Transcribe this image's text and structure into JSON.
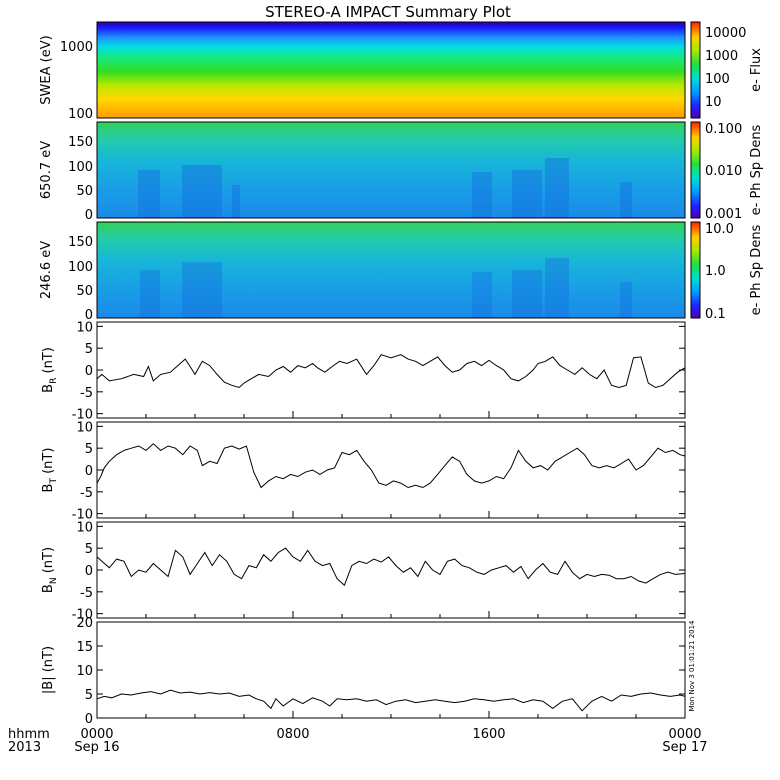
{
  "title": "STEREO-A IMPACT Summary Plot",
  "timestamp": "Mon Nov 3 01:01:21 2014",
  "x_axis": {
    "row1": [
      "0000",
      "0800",
      "1600",
      "0000"
    ],
    "row2": [
      "Sep 16",
      "Sep 17"
    ],
    "corner_row1": "hhmm",
    "corner_row2": "2013"
  },
  "chart_data": [
    {
      "type": "heatmap",
      "ylabel": "SWEA (eV)",
      "y_ticks": [
        "1000",
        "100"
      ],
      "colorbar_label": "e- Flux",
      "colorbar_ticks": [
        "10000",
        "1000",
        "100",
        "10"
      ],
      "log_scale": true,
      "ylim": [
        90,
        2000
      ]
    },
    {
      "type": "heatmap",
      "ylabel": "650.7 eV",
      "y_ticks": [
        "150",
        "100",
        "50",
        "0"
      ],
      "ylim": [
        -5,
        180
      ],
      "colorbar_label": "e- Ph Sp Dens",
      "colorbar_ticks": [
        "0.100",
        "0.010",
        "0.001"
      ]
    },
    {
      "type": "heatmap",
      "ylabel": "246.6 eV",
      "y_ticks": [
        "150",
        "100",
        "50",
        "0"
      ],
      "ylim": [
        -5,
        180
      ],
      "colorbar_label": "e- Ph Sp Dens",
      "colorbar_ticks": [
        "10.0",
        "1.0",
        "0.1"
      ]
    },
    {
      "type": "line",
      "ylabel": "B_R (nT)",
      "ylabel_main": "B",
      "ylabel_sub": "R",
      "ylabel_unit": "(nT)",
      "y_ticks": [
        "10",
        "5",
        "0",
        "-5",
        "-10"
      ],
      "ylim": [
        -11,
        11
      ],
      "x": [
        0,
        0.2,
        0.5,
        1,
        1.5,
        1.9,
        2.1,
        2.3,
        2.6,
        3,
        3.3,
        3.6,
        3.8,
        4,
        4.3,
        4.6,
        4.9,
        5.2,
        5.5,
        5.8,
        6,
        6.3,
        6.6,
        7,
        7.3,
        7.6,
        7.9,
        8.2,
        8.5,
        8.8,
        9,
        9.3,
        9.6,
        9.9,
        10.2,
        10.6,
        11,
        11.3,
        11.6,
        12,
        12.4,
        12.7,
        13,
        13.3,
        13.6,
        13.9,
        14.2,
        14.5,
        14.8,
        15.1,
        15.4,
        15.7,
        16,
        16.3,
        16.6,
        16.9,
        17.2,
        17.5,
        17.8,
        18,
        18.3,
        18.6,
        18.9,
        19.2,
        19.5,
        19.8,
        20.1,
        20.4,
        20.7,
        21,
        21.3,
        21.6,
        21.9,
        22.2,
        22.5,
        22.8,
        23.1,
        23.4,
        23.7,
        24
      ],
      "values": [
        -2,
        -1,
        -2.5,
        -2,
        -1,
        -1.5,
        0.8,
        -2.5,
        -1,
        -0.5,
        1,
        2.5,
        0.8,
        -1,
        2,
        1,
        -1,
        -2.8,
        -3.5,
        -4,
        -3,
        -2,
        -1,
        -1.5,
        0,
        0.8,
        -0.5,
        1,
        0.5,
        1.5,
        0.5,
        -0.5,
        0.8,
        2,
        1.5,
        2.5,
        -1,
        1,
        3.5,
        2.8,
        3.5,
        2.5,
        2,
        1,
        2,
        3,
        1,
        -0.5,
        0,
        1.5,
        2,
        1,
        2.2,
        1,
        0,
        -2,
        -2.5,
        -1.5,
        0,
        1.5,
        2,
        3,
        1,
        0,
        -1,
        0.5,
        -1,
        -2,
        0,
        -3.5,
        -4,
        -3.5,
        2.8,
        3,
        -3,
        -4,
        -3.5,
        -2,
        -0.5,
        0.5
      ]
    },
    {
      "type": "line",
      "ylabel": "B_T (nT)",
      "ylabel_main": "B",
      "ylabel_sub": "T",
      "ylabel_unit": "(nT)",
      "y_ticks": [
        "10",
        "5",
        "0",
        "-5",
        "-10"
      ],
      "ylim": [
        -11,
        11
      ],
      "x": [
        0,
        0.15,
        0.3,
        0.5,
        0.8,
        1.1,
        1.4,
        1.7,
        2,
        2.3,
        2.6,
        2.9,
        3.2,
        3.5,
        3.8,
        4.1,
        4.3,
        4.6,
        4.9,
        5.2,
        5.5,
        5.8,
        6.1,
        6.4,
        6.7,
        7,
        7.3,
        7.6,
        7.9,
        8.2,
        8.5,
        8.8,
        9.1,
        9.4,
        9.7,
        10,
        10.3,
        10.6,
        10.9,
        11.2,
        11.5,
        11.8,
        12.1,
        12.4,
        12.7,
        13,
        13.3,
        13.6,
        13.9,
        14.2,
        14.5,
        14.8,
        15.1,
        15.4,
        15.7,
        16,
        16.3,
        16.6,
        16.9,
        17.2,
        17.5,
        17.8,
        18.1,
        18.4,
        18.7,
        19,
        19.3,
        19.6,
        19.9,
        20.2,
        20.5,
        20.8,
        21.1,
        21.4,
        21.7,
        22,
        22.3,
        22.6,
        22.9,
        23.2,
        23.5,
        23.8,
        24
      ],
      "values": [
        -3,
        -1.5,
        0.5,
        2,
        3.5,
        4.5,
        5,
        5.5,
        4.5,
        6,
        4.5,
        5.5,
        5,
        3.5,
        5.5,
        4.5,
        1,
        2,
        1.5,
        5,
        5.5,
        4.8,
        5.5,
        -0.5,
        -4,
        -2.5,
        -1.5,
        -2,
        -1,
        -1.5,
        -0.5,
        0,
        -1,
        0,
        0.5,
        4,
        3.5,
        4.5,
        2,
        0,
        -3,
        -3.5,
        -2.5,
        -3,
        -4,
        -3.5,
        -4,
        -3,
        -1,
        1,
        3,
        2,
        -1,
        -2.5,
        -3,
        -2.5,
        -1.5,
        -2,
        0.5,
        4.5,
        2,
        0.5,
        1,
        0,
        2,
        3,
        4,
        5,
        3.5,
        1,
        0.5,
        1,
        0.5,
        1.5,
        2.5,
        0,
        1,
        3,
        5,
        4,
        4.5,
        3.5,
        3.2
      ]
    },
    {
      "type": "line",
      "ylabel": "B_N (nT)",
      "ylabel_main": "B",
      "ylabel_sub": "N",
      "ylabel_unit": "(nT)",
      "y_ticks": [
        "10",
        "5",
        "0",
        "-5",
        "-10"
      ],
      "ylim": [
        -11,
        11
      ],
      "x": [
        0,
        0.2,
        0.5,
        0.8,
        1.1,
        1.4,
        1.7,
        2,
        2.3,
        2.6,
        2.9,
        3.2,
        3.5,
        3.8,
        4.1,
        4.4,
        4.7,
        5,
        5.3,
        5.6,
        5.9,
        6.2,
        6.5,
        6.8,
        7.1,
        7.4,
        7.7,
        8,
        8.3,
        8.6,
        8.9,
        9.2,
        9.5,
        9.8,
        10.1,
        10.4,
        10.7,
        11,
        11.3,
        11.6,
        11.9,
        12.2,
        12.5,
        12.8,
        13.1,
        13.4,
        13.7,
        14,
        14.3,
        14.6,
        14.9,
        15.2,
        15.5,
        15.8,
        16.1,
        16.4,
        16.7,
        17,
        17.3,
        17.6,
        17.9,
        18.2,
        18.5,
        18.8,
        19.1,
        19.4,
        19.7,
        20,
        20.3,
        20.6,
        20.9,
        21.2,
        21.5,
        21.8,
        22.1,
        22.4,
        22.7,
        23,
        23.3,
        23.6,
        24
      ],
      "values": [
        3,
        2,
        0.5,
        2.5,
        2,
        -1.5,
        0,
        -0.5,
        1.5,
        0,
        -1.5,
        4.5,
        3,
        -1,
        1.5,
        4,
        1,
        3.5,
        2,
        -1,
        -2,
        1,
        0.5,
        3.5,
        2,
        4,
        5,
        3,
        2,
        4.5,
        2,
        1,
        1.5,
        -2,
        -3.5,
        1,
        2,
        1.5,
        2.5,
        1.8,
        3,
        1,
        -0.5,
        0.5,
        -1.5,
        2,
        0,
        -1,
        2,
        2.5,
        1,
        0.5,
        -0.5,
        -1,
        0,
        0.5,
        1,
        -0.5,
        0.8,
        -2,
        0,
        1.5,
        -0.5,
        -1,
        2,
        -0.5,
        -2,
        -1,
        -1.5,
        -1,
        -1.2,
        -2,
        -2,
        -1.5,
        -2.5,
        -3,
        -2,
        -1,
        -0.5,
        -1,
        -0.8
      ]
    },
    {
      "type": "line",
      "ylabel": "|B| (nT)",
      "ylabel_main": "|B| (nT)",
      "y_ticks": [
        "20",
        "15",
        "10",
        "5",
        "0"
      ],
      "ylim": [
        0,
        20
      ],
      "x": [
        0,
        0.3,
        0.6,
        1,
        1.4,
        1.8,
        2.2,
        2.6,
        3,
        3.4,
        3.8,
        4.2,
        4.6,
        5,
        5.4,
        5.8,
        6.2,
        6.5,
        6.8,
        7.1,
        7.3,
        7.6,
        8,
        8.4,
        8.8,
        9.2,
        9.5,
        9.8,
        10.2,
        10.6,
        11,
        11.4,
        11.8,
        12.2,
        12.6,
        13,
        13.4,
        13.8,
        14.2,
        14.6,
        15,
        15.4,
        15.8,
        16.2,
        16.6,
        17,
        17.4,
        17.8,
        18.2,
        18.6,
        19,
        19.4,
        19.8,
        20.2,
        20.6,
        21,
        21.4,
        21.8,
        22.2,
        22.6,
        23,
        23.4,
        23.8,
        24
      ],
      "values": [
        4,
        4.5,
        4.2,
        5,
        4.8,
        5.2,
        5.5,
        5,
        5.8,
        5.2,
        5.4,
        5,
        5.3,
        5,
        5.2,
        4.5,
        4.8,
        4,
        3.5,
        2,
        4,
        2.5,
        4,
        3,
        4.2,
        3.5,
        2.5,
        4,
        3.8,
        4,
        3.5,
        3.8,
        2.8,
        3.5,
        3.8,
        3.2,
        3.5,
        3.8,
        3.5,
        3.2,
        3.5,
        4,
        3.8,
        3.5,
        3.8,
        4,
        3.2,
        3.8,
        3.5,
        2,
        3.5,
        4,
        1.5,
        3.5,
        4.5,
        3.5,
        4.8,
        4.5,
        5,
        5.2,
        4.8,
        4.5,
        4.8,
        4.5
      ]
    }
  ]
}
